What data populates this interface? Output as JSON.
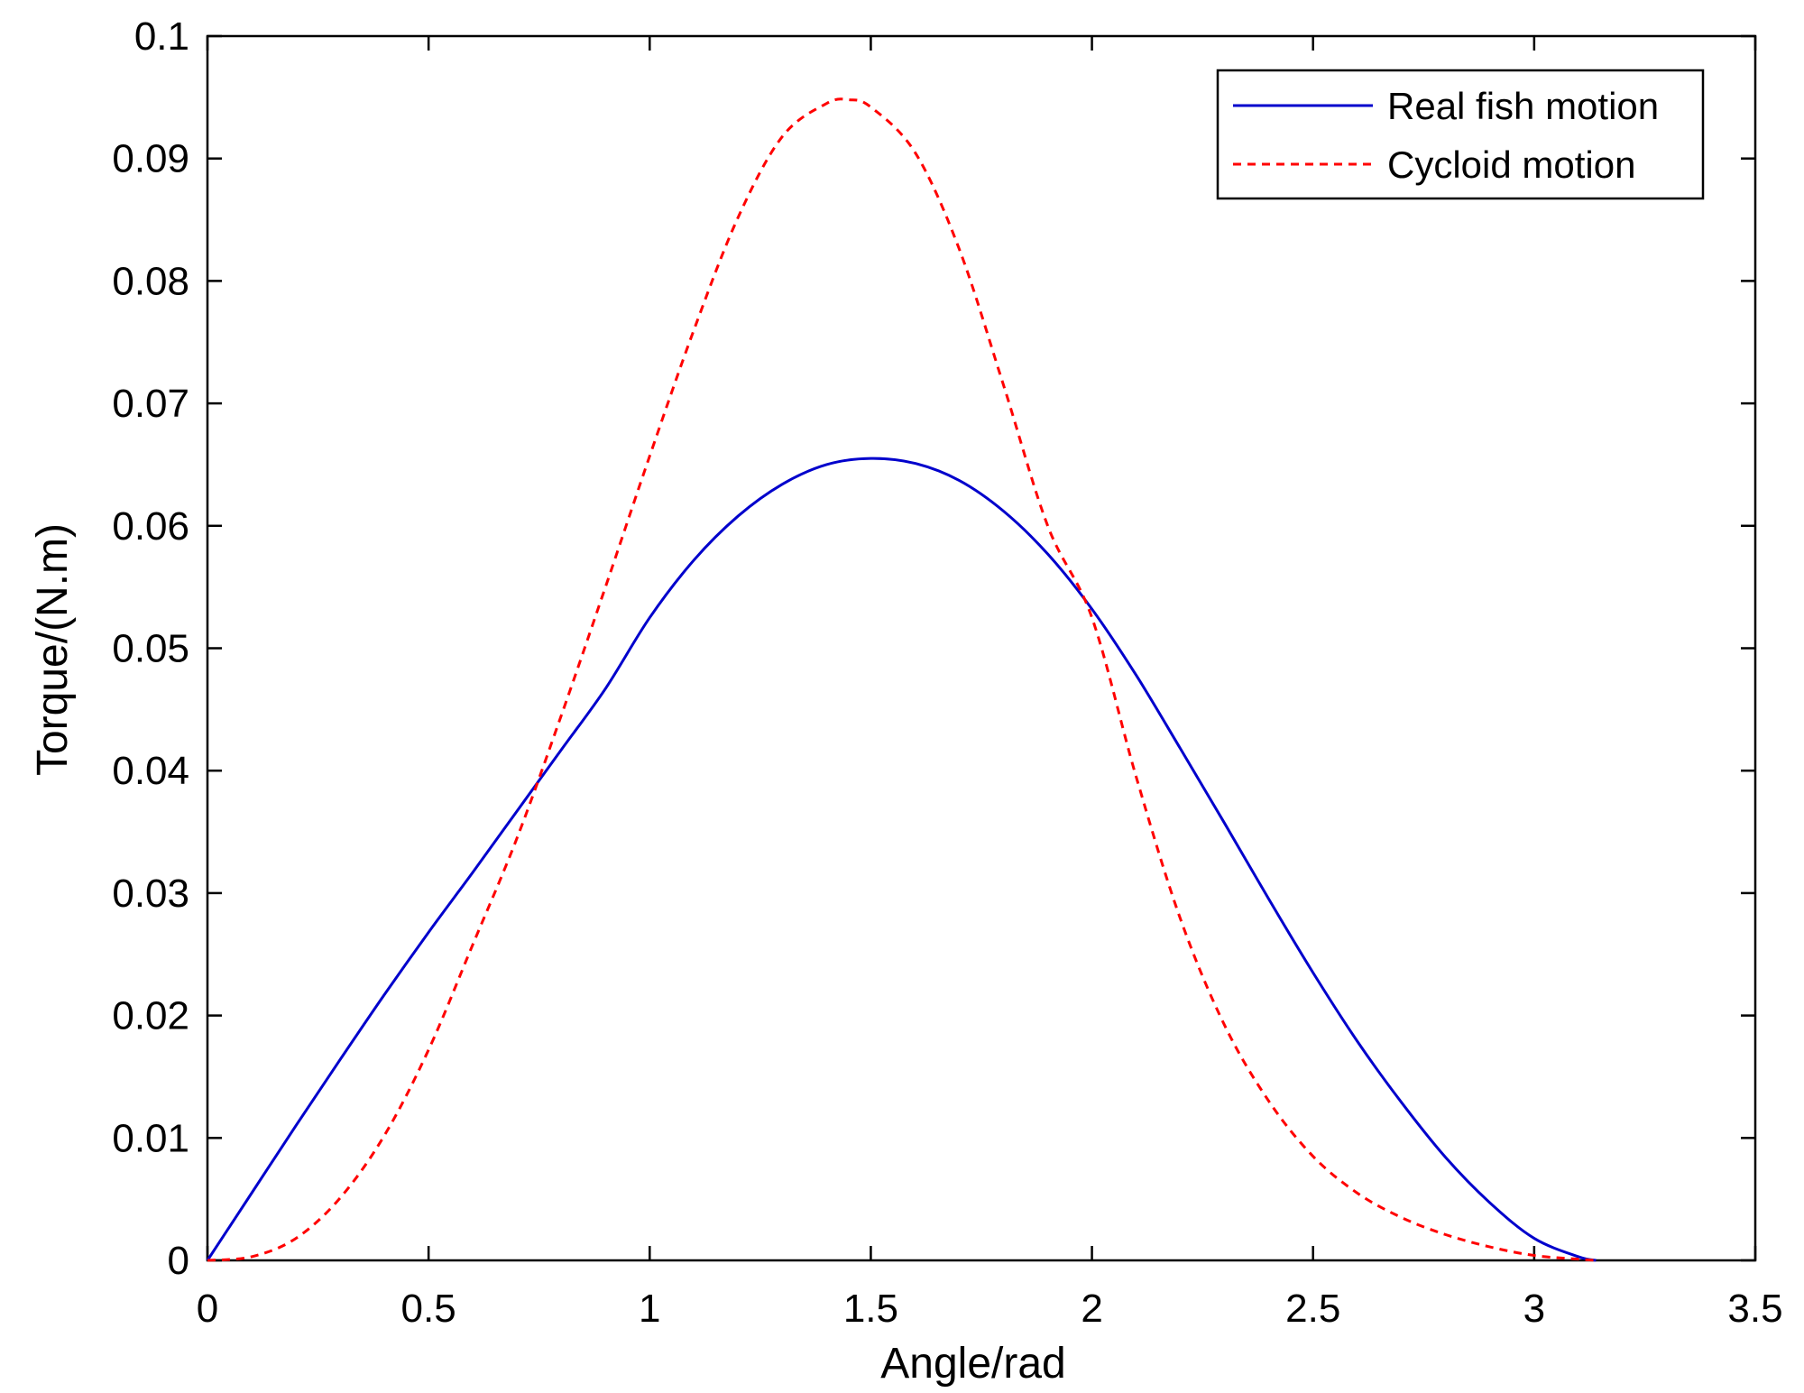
{
  "chart_data": {
    "type": "line",
    "title": "",
    "xlabel": "Angle/rad",
    "ylabel": "Torque/(N.m)",
    "xlim": [
      0,
      3.5
    ],
    "ylim": [
      0,
      0.1
    ],
    "xticks": [
      0,
      0.5,
      1,
      1.5,
      2,
      2.5,
      3,
      3.5
    ],
    "xtick_labels": [
      "0",
      "0.5",
      "1",
      "1.5",
      "2",
      "2.5",
      "3",
      "3.5"
    ],
    "yticks": [
      0,
      0.01,
      0.02,
      0.03,
      0.04,
      0.05,
      0.06,
      0.07,
      0.08,
      0.09,
      0.1
    ],
    "ytick_labels": [
      "0",
      "0.01",
      "0.02",
      "0.03",
      "0.04",
      "0.05",
      "0.06",
      "0.07",
      "0.08",
      "0.09",
      "0.1"
    ],
    "grid": false,
    "legend_position": "top-right",
    "series": [
      {
        "name": "Real fish motion",
        "color": "#0000cc",
        "style": "solid",
        "x": [
          0,
          0.1,
          0.2,
          0.3,
          0.4,
          0.5,
          0.6,
          0.7,
          0.8,
          0.9,
          1.0,
          1.1,
          1.2,
          1.3,
          1.4,
          1.5,
          1.6,
          1.7,
          1.8,
          1.9,
          2.0,
          2.1,
          2.2,
          2.3,
          2.4,
          2.5,
          2.6,
          2.7,
          2.8,
          2.9,
          3.0,
          3.1,
          3.14
        ],
        "y": [
          0,
          0.0055,
          0.011,
          0.0164,
          0.0217,
          0.0268,
          0.0317,
          0.0367,
          0.0417,
          0.0467,
          0.0525,
          0.0572,
          0.0608,
          0.0634,
          0.065,
          0.0655,
          0.0651,
          0.0637,
          0.0612,
          0.0577,
          0.0532,
          0.0478,
          0.0418,
          0.0357,
          0.0295,
          0.0235,
          0.0179,
          0.0129,
          0.0084,
          0.0047,
          0.0018,
          0.0003,
          0
        ]
      },
      {
        "name": "Cycloid motion",
        "color": "#ff0000",
        "style": "dashed",
        "x": [
          0,
          0.1,
          0.2,
          0.3,
          0.4,
          0.5,
          0.6,
          0.7,
          0.8,
          0.9,
          1.0,
          1.1,
          1.2,
          1.3,
          1.4,
          1.45,
          1.5,
          1.6,
          1.7,
          1.8,
          1.9,
          2.0,
          2.1,
          2.2,
          2.3,
          2.4,
          2.5,
          2.6,
          2.7,
          2.8,
          2.9,
          3.0,
          3.1,
          3.14
        ],
        "y": [
          0,
          0.0003,
          0.0018,
          0.0051,
          0.0102,
          0.0172,
          0.0258,
          0.0345,
          0.0445,
          0.055,
          0.0657,
          0.076,
          0.0852,
          0.0918,
          0.0945,
          0.0948,
          0.0942,
          0.0905,
          0.0826,
          0.0715,
          0.06,
          0.0525,
          0.0395,
          0.0279,
          0.0192,
          0.013,
          0.0085,
          0.0055,
          0.0035,
          0.0021,
          0.0011,
          0.0004,
          0.0001,
          0
        ]
      }
    ]
  }
}
